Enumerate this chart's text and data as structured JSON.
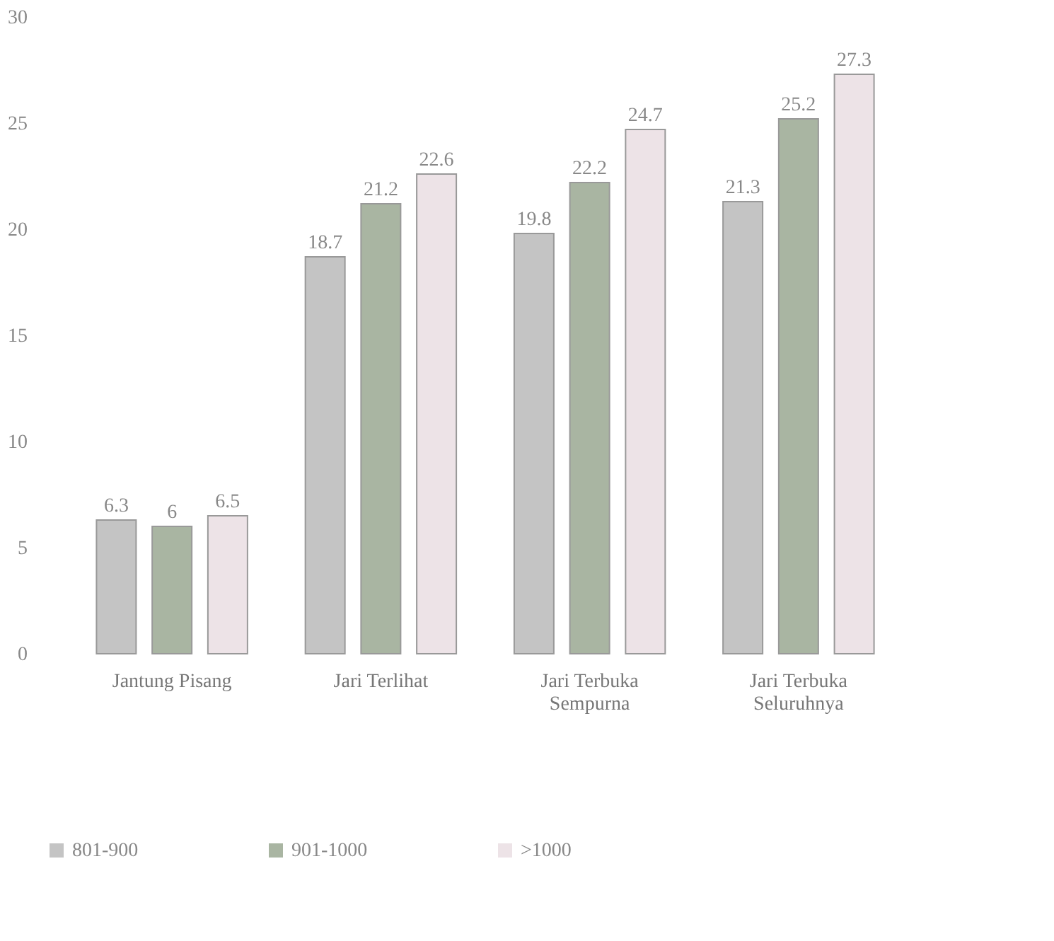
{
  "chart_data": {
    "type": "bar",
    "categories": [
      "Jantung Pisang",
      "Jari Terlihat",
      "Jari Terbuka Sempurna",
      "Jari Terbuka Seluruhnya"
    ],
    "series": [
      {
        "name": "801-900",
        "color": "#c4c4c4",
        "values": [
          6.3,
          18.7,
          19.8,
          21.3
        ]
      },
      {
        "name": "901-1000",
        "color": "#a9b5a2",
        "values": [
          6,
          21.2,
          22.2,
          25.2
        ]
      },
      {
        "name": ">1000",
        "color": "#ede3e7",
        "values": [
          6.5,
          22.6,
          24.7,
          27.3
        ]
      }
    ],
    "ylim": [
      0,
      30
    ],
    "yticks": [
      0,
      5,
      10,
      15,
      20,
      25,
      30
    ],
    "grid": false,
    "legend": "bottom",
    "data_labels": true
  }
}
